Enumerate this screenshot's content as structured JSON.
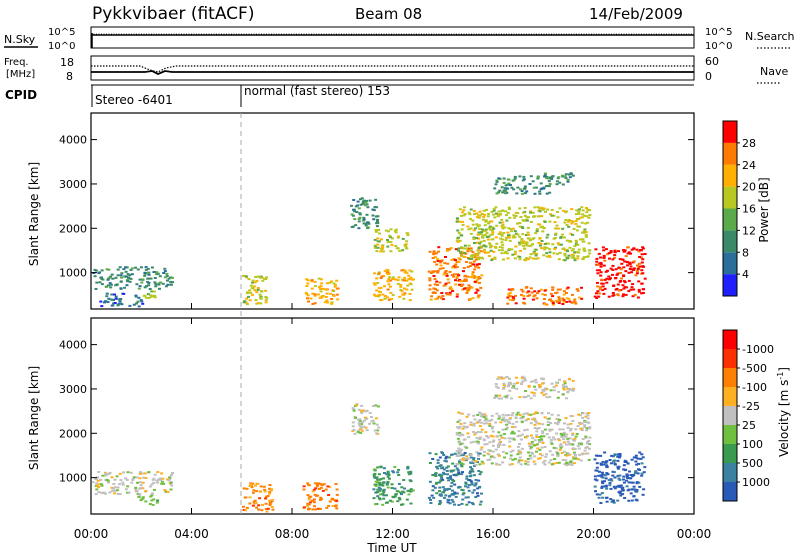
{
  "header": {
    "station": "Pykkvibaer (fitACF)",
    "beam": "Beam 08",
    "date": "14/Feb/2009"
  },
  "noise_panel": {
    "left_label": "N.Sky",
    "right_label": "N.Search",
    "left_ticks": [
      "10^5",
      "10^0"
    ],
    "right_ticks": [
      "10^5",
      "10^0"
    ]
  },
  "freq_panel": {
    "left_label_line1": "Freq.",
    "left_label_line2": "[MHz]",
    "right_label": "Nave",
    "left_ticks": [
      "18",
      "8"
    ],
    "right_ticks": [
      "60",
      "0"
    ]
  },
  "cpid": {
    "label": "CPID",
    "segments": [
      {
        "text": "Stereo -6401",
        "start_hour": 0
      },
      {
        "text": "normal (fast stereo) 153",
        "start_hour": 6
      }
    ]
  },
  "axes": {
    "ylabel": "Slant Range [km]",
    "xlabel": "Time UT",
    "yticks": [
      1000,
      2000,
      3000,
      4000
    ],
    "ylim": [
      180,
      4600
    ],
    "xticks": [
      "00:00",
      "04:00",
      "08:00",
      "12:00",
      "16:00",
      "20:00",
      "00:00"
    ],
    "xlim_hours": [
      0,
      24
    ]
  },
  "power_colorbar": {
    "title": "Power [dB]",
    "labels": [
      "4",
      "8",
      "12",
      "16",
      "20",
      "24",
      "28"
    ],
    "colors": [
      "#2020ff",
      "#2a6e9a",
      "#3a8a6a",
      "#5aaa4a",
      "#b8c820",
      "#ffb000",
      "#ff7a00",
      "#ff0000"
    ]
  },
  "velocity_colorbar": {
    "title": "Velocity [m s",
    "title_sup": "-1",
    "title_end": "]",
    "labels": [
      "1000",
      "500",
      "100",
      "25",
      "-25",
      "-100",
      "-500",
      "-1000"
    ],
    "colors": [
      "#2a5ab8",
      "#3a82a0",
      "#3a9a50",
      "#70c040",
      "#c0c0c0",
      "#ffb020",
      "#ff8000",
      "#ff3000",
      "#ff0000"
    ]
  },
  "chart_data": [
    {
      "type": "heatmap",
      "name": "Power",
      "x_unit": "hours UT",
      "y_unit": "km",
      "regions": [
        {
          "t0": 0.0,
          "t1": 3.2,
          "r0": 650,
          "r1": 1150,
          "level": 2
        },
        {
          "t0": 0.3,
          "t1": 2.0,
          "r0": 250,
          "r1": 550,
          "level": 1
        },
        {
          "t0": 2.0,
          "t1": 2.5,
          "r0": 450,
          "r1": 600,
          "level": 4
        },
        {
          "t0": 6.0,
          "t1": 7.0,
          "r0": 300,
          "r1": 950,
          "level": 4
        },
        {
          "t0": 8.5,
          "t1": 9.8,
          "r0": 300,
          "r1": 900,
          "level": 5
        },
        {
          "t0": 10.3,
          "t1": 11.4,
          "r0": 2000,
          "r1": 2700,
          "level": 2
        },
        {
          "t0": 11.2,
          "t1": 12.6,
          "r0": 1500,
          "r1": 2000,
          "level": 4
        },
        {
          "t0": 11.2,
          "t1": 12.8,
          "r0": 400,
          "r1": 1100,
          "level": 5
        },
        {
          "t0": 13.4,
          "t1": 15.5,
          "r0": 400,
          "r1": 1600,
          "level": 6
        },
        {
          "t0": 14.5,
          "t1": 19.8,
          "r0": 1300,
          "r1": 2500,
          "level": 4
        },
        {
          "t0": 16.0,
          "t1": 18.2,
          "r0": 2800,
          "r1": 3200,
          "level": 2
        },
        {
          "t0": 18.0,
          "t1": 19.2,
          "r0": 3000,
          "r1": 3300,
          "level": 2
        },
        {
          "t0": 20.0,
          "t1": 22.0,
          "r0": 450,
          "r1": 1600,
          "level": 7
        },
        {
          "t0": 16.5,
          "t1": 19.5,
          "r0": 300,
          "r1": 700,
          "level": 6
        }
      ]
    },
    {
      "type": "heatmap",
      "name": "Velocity",
      "x_unit": "hours UT",
      "y_unit": "km",
      "regions": [
        {
          "t0": 0.0,
          "t1": 3.2,
          "r0": 650,
          "r1": 1150,
          "level": 4
        },
        {
          "t0": 1.8,
          "t1": 2.6,
          "r0": 400,
          "r1": 650,
          "level": 3
        },
        {
          "t0": 6.0,
          "t1": 7.2,
          "r0": 250,
          "r1": 900,
          "level": 6
        },
        {
          "t0": 8.4,
          "t1": 9.8,
          "r0": 300,
          "r1": 900,
          "level": 6
        },
        {
          "t0": 10.3,
          "t1": 11.4,
          "r0": 2000,
          "r1": 2700,
          "level": 4
        },
        {
          "t0": 11.2,
          "t1": 12.8,
          "r0": 400,
          "r1": 1300,
          "level": 2
        },
        {
          "t0": 13.4,
          "t1": 15.5,
          "r0": 400,
          "r1": 1600,
          "level": 1
        },
        {
          "t0": 14.5,
          "t1": 19.8,
          "r0": 1300,
          "r1": 2500,
          "level": 4
        },
        {
          "t0": 16.0,
          "t1": 19.2,
          "r0": 2800,
          "r1": 3300,
          "level": 4
        },
        {
          "t0": 20.0,
          "t1": 22.0,
          "r0": 450,
          "r1": 1600,
          "level": 0
        }
      ]
    }
  ]
}
